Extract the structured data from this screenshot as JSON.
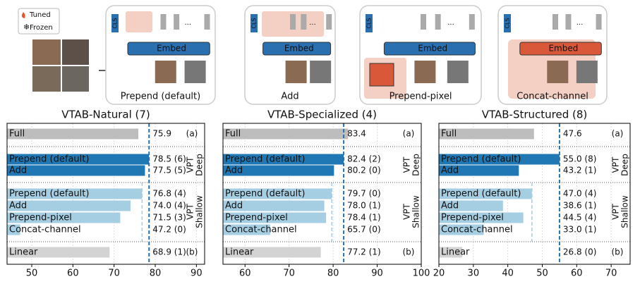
{
  "legend": {
    "tuned": "Tuned",
    "frozen": "Frozen"
  },
  "diagram": {
    "embed": "Embed",
    "cls": "CLS",
    "ellipsis": "...",
    "panels": [
      "Prepend (default)",
      "Add",
      "Prepend-pixel",
      "Concat-channel"
    ]
  },
  "chart_data": [
    {
      "type": "bar",
      "orientation": "horizontal",
      "title": "VTAB-Natural (7)",
      "categories": [
        "Full",
        "Prepend (default)",
        "Add",
        "Prepend (default)",
        "Add",
        "Prepend-pixel",
        "Concat-channel",
        "Linear"
      ],
      "values": [
        75.9,
        78.5,
        77.5,
        76.8,
        74.0,
        71.5,
        47.2,
        68.9
      ],
      "value_labels": [
        "75.9",
        "78.5 (6)",
        "77.5 (5)",
        "76.8 (4)",
        "74.0 (4)",
        "71.5 (3)",
        "47.2 (0)",
        "68.9 (1)"
      ],
      "colors": [
        "#bdbdbd",
        "#1f77b4",
        "#1f77b4",
        "#a6cee3",
        "#a6cee3",
        "#a6cee3",
        "#a6cee3",
        "#d3d3d3"
      ],
      "groups": [
        [
          "(a)"
        ],
        [
          "VPT",
          "Deep"
        ],
        [
          "VPT",
          "Shallow"
        ],
        [
          "(b)"
        ]
      ],
      "xlim": [
        44,
        92
      ],
      "xticks": [
        50,
        60,
        70,
        80,
        90
      ],
      "grid": true
    },
    {
      "type": "bar",
      "orientation": "horizontal",
      "title": "VTAB-Specialized (4)",
      "categories": [
        "Full",
        "Prepend (default)",
        "Add",
        "Prepend (default)",
        "Add",
        "Prepend-pixel",
        "Concat-channel",
        "Linear"
      ],
      "values": [
        83.4,
        82.4,
        80.2,
        79.7,
        78.0,
        78.4,
        65.7,
        77.2
      ],
      "value_labels": [
        "83.4",
        "82.4 (2)",
        "80.2 (0)",
        "79.7 (0)",
        "78.0 (1)",
        "78.4 (1)",
        "65.7 (0)",
        "77.2 (1)"
      ],
      "colors": [
        "#bdbdbd",
        "#1f77b4",
        "#1f77b4",
        "#a6cee3",
        "#a6cee3",
        "#a6cee3",
        "#a6cee3",
        "#d3d3d3"
      ],
      "groups": [
        [
          "(a)"
        ],
        [
          "VPT",
          "Deep"
        ],
        [
          "VPT",
          "Shallow"
        ],
        [
          "(b)"
        ]
      ],
      "xlim": [
        55,
        100
      ],
      "xticks": [
        60,
        70,
        80,
        90,
        100
      ],
      "grid": true
    },
    {
      "type": "bar",
      "orientation": "horizontal",
      "title": "VTAB-Structured (8)",
      "categories": [
        "Full",
        "Prepend (default)",
        "Add",
        "Prepend (default)",
        "Add",
        "Prepend-pixel",
        "Concat-channel",
        "Linear"
      ],
      "values": [
        47.6,
        55.0,
        43.2,
        47.0,
        38.6,
        44.5,
        33.0,
        26.8
      ],
      "value_labels": [
        "47.6",
        "55.0 (8)",
        "43.2 (1)",
        "47.0 (4)",
        "38.6 (1)",
        "44.5 (4)",
        "33.0 (1)",
        "26.8 (0)"
      ],
      "colors": [
        "#bdbdbd",
        "#1f77b4",
        "#1f77b4",
        "#a6cee3",
        "#a6cee3",
        "#a6cee3",
        "#a6cee3",
        "#d3d3d3"
      ],
      "groups": [
        [
          "(a)"
        ],
        [
          "VPT",
          "Deep"
        ],
        [
          "VPT",
          "Shallow"
        ],
        [
          "(b)"
        ]
      ],
      "xlim": [
        20,
        75.5
      ],
      "xticks": [
        20,
        30,
        40,
        50,
        60,
        70
      ],
      "grid": true
    }
  ]
}
